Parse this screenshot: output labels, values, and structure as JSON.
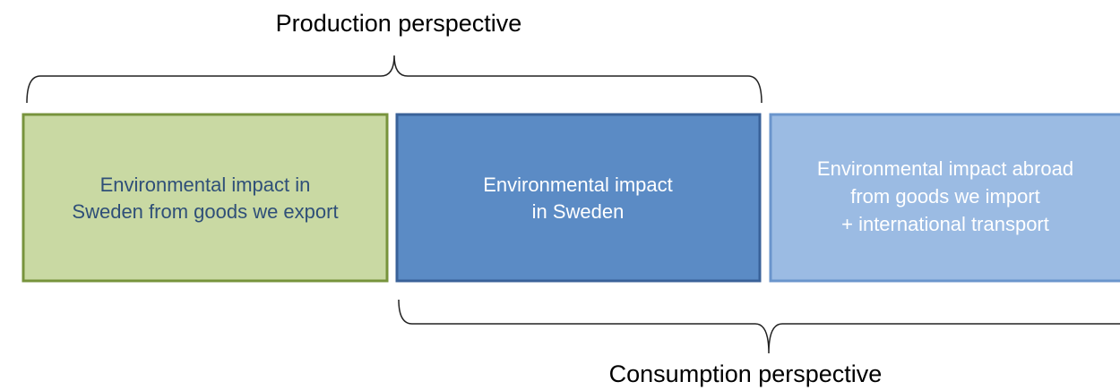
{
  "labels": {
    "top": "Production perspective",
    "bottom": "Consumption perspective"
  },
  "boxes": [
    {
      "lines": [
        "Environmental impact in",
        "Sweden from goods we export"
      ]
    },
    {
      "lines": [
        "Environmental impact",
        "in Sweden"
      ]
    },
    {
      "lines": [
        "Environmental impact abroad",
        "from goods we import",
        "+ international transport"
      ]
    }
  ]
}
